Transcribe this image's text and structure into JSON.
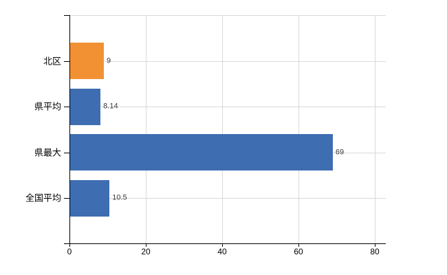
{
  "chart_data": {
    "type": "bar",
    "orientation": "horizontal",
    "title": "",
    "xlabel": "",
    "ylabel": "",
    "categories": [
      "北区",
      "県平均",
      "県最大",
      "全国平均"
    ],
    "values": [
      9,
      8.14,
      69,
      10.5
    ],
    "value_labels": [
      "9",
      "8.14",
      "69",
      "10.5"
    ],
    "bar_colors": [
      "#f29134",
      "#3e6db2",
      "#3e6db2",
      "#3e6db2"
    ],
    "x_tick_values": [
      0,
      20,
      40,
      60,
      80
    ],
    "x_tick_labels": [
      "0",
      "20",
      "40",
      "60",
      "80"
    ],
    "xlim": [
      0,
      82.9
    ],
    "grid": true,
    "legend": false,
    "colors": {
      "highlight_bar": "#f29134",
      "default_bar": "#3e6db2",
      "gridline": "#d9d9d9",
      "axis": "#000000",
      "category_text": "#000000",
      "value_text": "#3a3a3a",
      "background": "#ffffff"
    }
  }
}
